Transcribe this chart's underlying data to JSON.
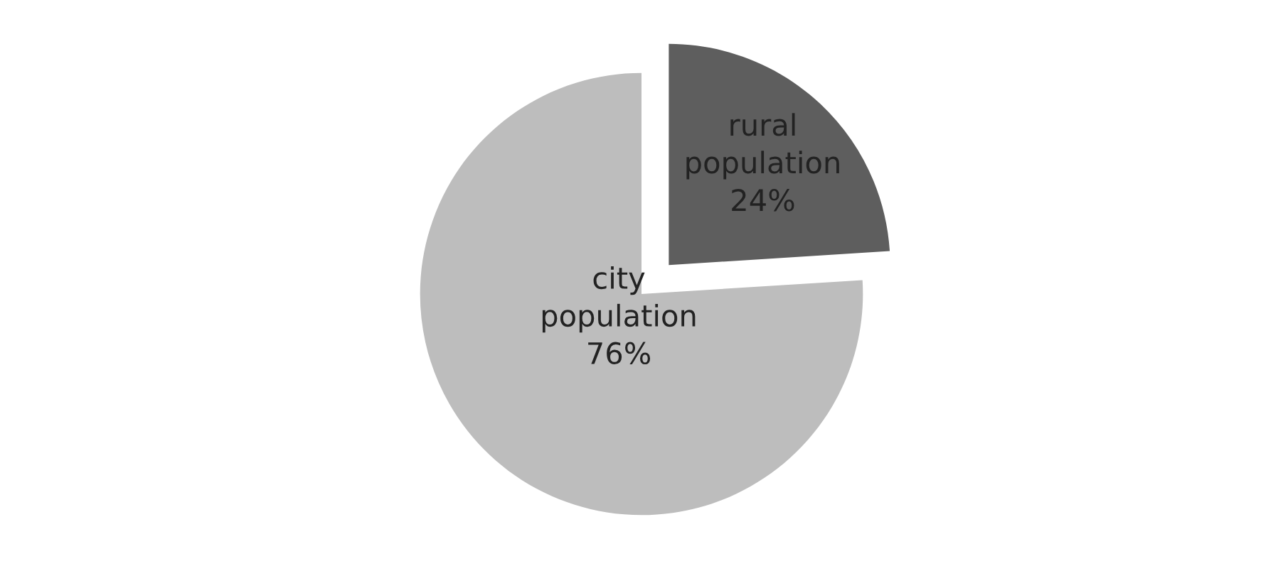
{
  "chart_data": {
    "type": "pie",
    "categories": [
      "rural population",
      "city population"
    ],
    "values": [
      24,
      76
    ],
    "colors": [
      "#5e5e5e",
      "#bdbdbd"
    ],
    "value_labels": [
      "24%",
      "76%"
    ],
    "legend": false
  }
}
